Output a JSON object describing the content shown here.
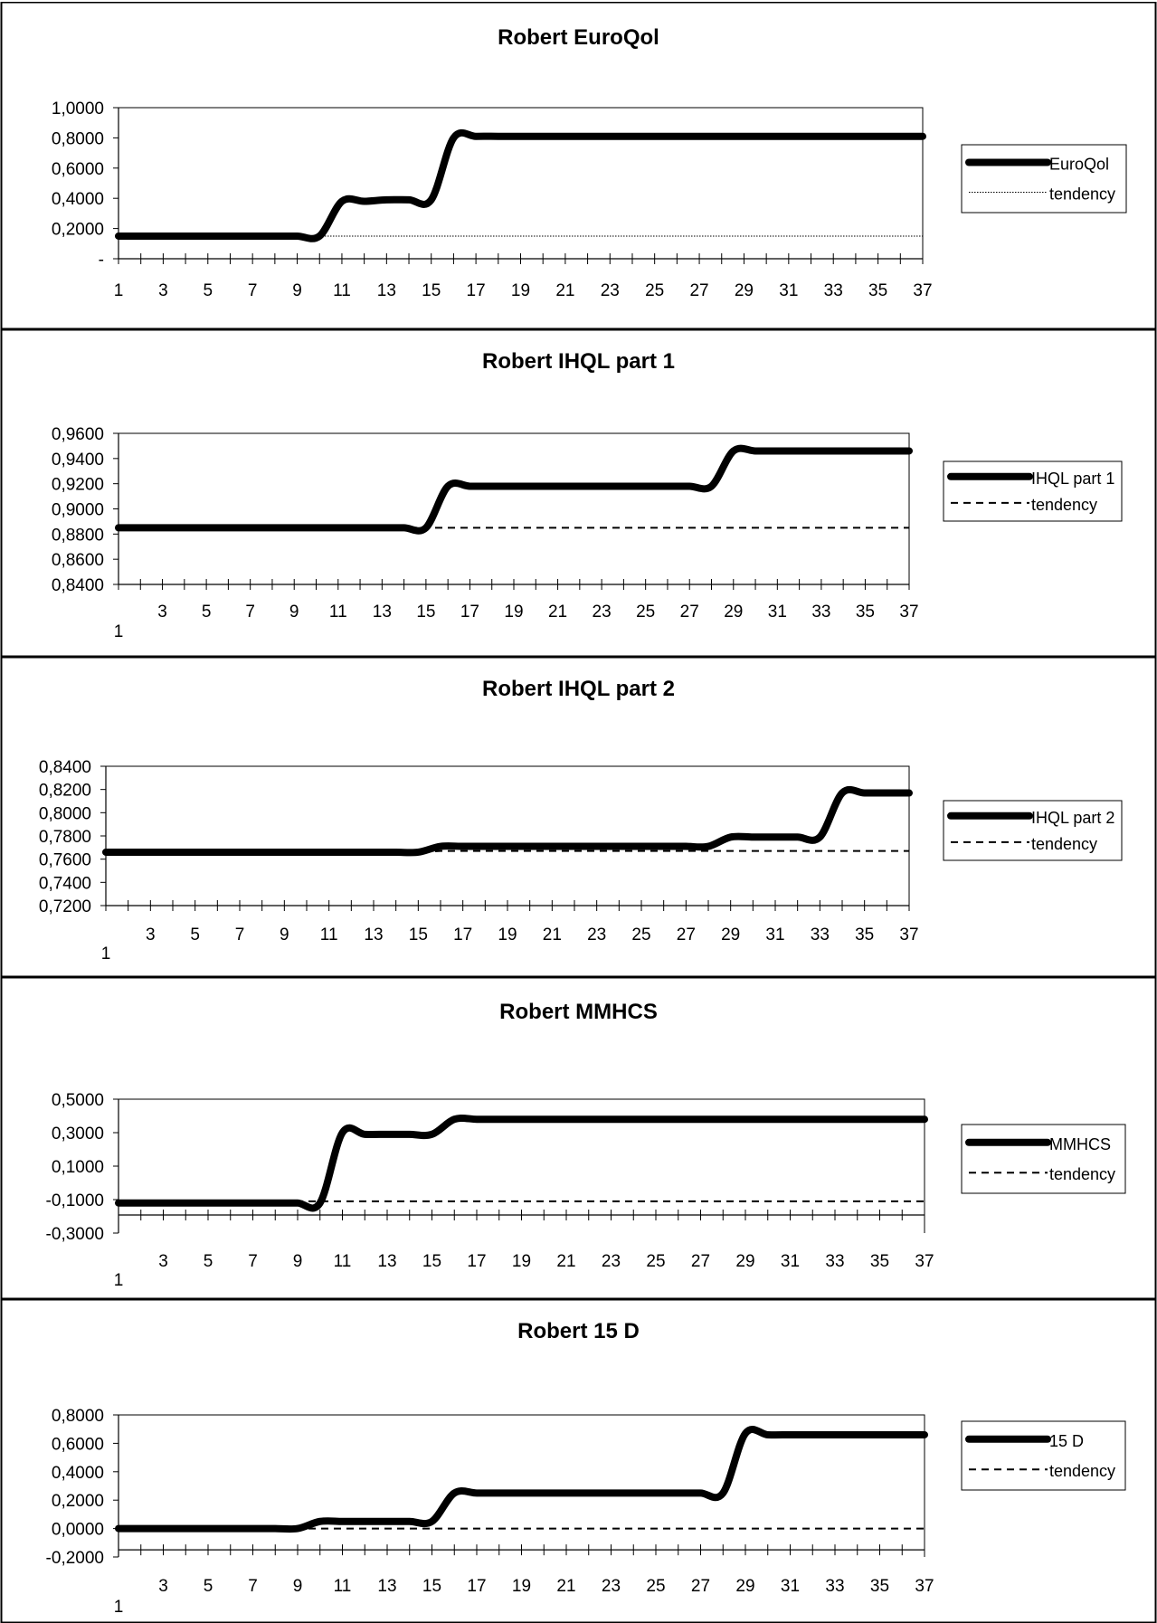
{
  "chart_data": [
    {
      "type": "line",
      "title": "Robert EuroQol",
      "x": [
        1,
        2,
        3,
        4,
        5,
        6,
        7,
        8,
        9,
        10,
        11,
        12,
        13,
        14,
        15,
        16,
        17,
        18,
        19,
        20,
        21,
        22,
        23,
        24,
        25,
        26,
        27,
        28,
        29,
        30,
        31,
        32,
        33,
        34,
        35,
        36,
        37
      ],
      "xticklabels": [
        "1",
        "3",
        "5",
        "7",
        "9",
        "11",
        "13",
        "15",
        "17",
        "19",
        "21",
        "23",
        "25",
        "27",
        "29",
        "31",
        "33",
        "35",
        "37"
      ],
      "ylim": [
        0,
        1
      ],
      "yticklabels": [
        "-",
        "0,2000",
        "0,4000",
        "0,6000",
        "0,8000",
        "1,0000"
      ],
      "grid": false,
      "legend_position": "right",
      "series": [
        {
          "name": "EuroQol",
          "style": "thick-solid",
          "values": [
            0.15,
            0.15,
            0.15,
            0.15,
            0.15,
            0.15,
            0.15,
            0.15,
            0.15,
            0.15,
            0.38,
            0.38,
            0.39,
            0.39,
            0.39,
            0.8,
            0.81,
            0.81,
            0.81,
            0.81,
            0.81,
            0.81,
            0.81,
            0.81,
            0.81,
            0.81,
            0.81,
            0.81,
            0.81,
            0.81,
            0.81,
            0.81,
            0.81,
            0.81,
            0.81,
            0.81,
            0.81
          ]
        },
        {
          "name": "tendency",
          "style": "thin-dotted",
          "values": [
            0.15,
            0.15,
            0.15,
            0.15,
            0.15,
            0.15,
            0.15,
            0.15,
            0.15,
            0.15,
            0.15,
            0.15,
            0.15,
            0.15,
            0.15,
            0.15,
            0.15,
            0.15,
            0.15,
            0.15,
            0.15,
            0.15,
            0.15,
            0.15,
            0.15,
            0.15,
            0.15,
            0.15,
            0.15,
            0.15,
            0.15,
            0.15,
            0.15,
            0.15,
            0.15,
            0.15,
            0.15
          ]
        }
      ]
    },
    {
      "type": "line",
      "title": "Robert IHQL part 1",
      "x": [
        1,
        2,
        3,
        4,
        5,
        6,
        7,
        8,
        9,
        10,
        11,
        12,
        13,
        14,
        15,
        16,
        17,
        18,
        19,
        20,
        21,
        22,
        23,
        24,
        25,
        26,
        27,
        28,
        29,
        30,
        31,
        32,
        33,
        34,
        35,
        36,
        37
      ],
      "xticklabels": [
        "3",
        "5",
        "7",
        "9",
        "11",
        "13",
        "15",
        "17",
        "19",
        "21",
        "23",
        "25",
        "27",
        "29",
        "31",
        "33",
        "35",
        "37"
      ],
      "xlabel_first": "1",
      "ylim": [
        0.84,
        0.96
      ],
      "yticklabels": [
        "0,8400",
        "0,8600",
        "0,8800",
        "0,9000",
        "0,9200",
        "0,9400",
        "0,9600"
      ],
      "grid": false,
      "legend_position": "right",
      "series": [
        {
          "name": "IHQL part 1",
          "style": "thick-solid",
          "values": [
            0.885,
            0.885,
            0.885,
            0.885,
            0.885,
            0.885,
            0.885,
            0.885,
            0.885,
            0.885,
            0.885,
            0.885,
            0.885,
            0.885,
            0.885,
            0.918,
            0.918,
            0.918,
            0.918,
            0.918,
            0.918,
            0.918,
            0.918,
            0.918,
            0.918,
            0.918,
            0.918,
            0.918,
            0.946,
            0.946,
            0.946,
            0.946,
            0.946,
            0.946,
            0.946,
            0.946,
            0.946
          ]
        },
        {
          "name": "tendency",
          "style": "dashed",
          "values": [
            0.885,
            0.885,
            0.885,
            0.885,
            0.885,
            0.885,
            0.885,
            0.885,
            0.885,
            0.885,
            0.885,
            0.885,
            0.885,
            0.885,
            0.885,
            0.885,
            0.885,
            0.885,
            0.885,
            0.885,
            0.885,
            0.885,
            0.885,
            0.885,
            0.885,
            0.885,
            0.885,
            0.885,
            0.885,
            0.885,
            0.885,
            0.885,
            0.885,
            0.885,
            0.885,
            0.885,
            0.885
          ]
        }
      ]
    },
    {
      "type": "line",
      "title": "Robert IHQL part 2",
      "x": [
        1,
        2,
        3,
        4,
        5,
        6,
        7,
        8,
        9,
        10,
        11,
        12,
        13,
        14,
        15,
        16,
        17,
        18,
        19,
        20,
        21,
        22,
        23,
        24,
        25,
        26,
        27,
        28,
        29,
        30,
        31,
        32,
        33,
        34,
        35,
        36,
        37
      ],
      "xticklabels": [
        "3",
        "5",
        "7",
        "9",
        "11",
        "13",
        "15",
        "17",
        "19",
        "21",
        "23",
        "25",
        "27",
        "29",
        "31",
        "33",
        "35",
        "37"
      ],
      "xlabel_first": "1",
      "ylim": [
        0.72,
        0.84
      ],
      "yticklabels": [
        "0,7200",
        "0,7400",
        "0,7600",
        "0,7800",
        "0,8000",
        "0,8200",
        "0,8400"
      ],
      "grid": false,
      "legend_position": "right",
      "series": [
        {
          "name": "IHQL part 2",
          "style": "thick-solid",
          "values": [
            0.766,
            0.766,
            0.766,
            0.766,
            0.766,
            0.766,
            0.766,
            0.766,
            0.766,
            0.766,
            0.766,
            0.766,
            0.766,
            0.766,
            0.766,
            0.771,
            0.771,
            0.771,
            0.771,
            0.771,
            0.771,
            0.771,
            0.771,
            0.771,
            0.771,
            0.771,
            0.771,
            0.771,
            0.779,
            0.779,
            0.779,
            0.779,
            0.779,
            0.817,
            0.817,
            0.817,
            0.817
          ]
        },
        {
          "name": "tendency",
          "style": "dashed",
          "values": [
            0.766,
            0.766,
            0.766,
            0.766,
            0.766,
            0.766,
            0.766,
            0.766,
            0.766,
            0.766,
            0.766,
            0.766,
            0.766,
            0.766,
            0.766,
            0.767,
            0.767,
            0.767,
            0.767,
            0.767,
            0.767,
            0.767,
            0.767,
            0.767,
            0.767,
            0.767,
            0.767,
            0.767,
            0.767,
            0.767,
            0.767,
            0.767,
            0.767,
            0.767,
            0.767,
            0.767,
            0.767
          ]
        }
      ]
    },
    {
      "type": "line",
      "title": "Robert MMHCS",
      "x": [
        1,
        2,
        3,
        4,
        5,
        6,
        7,
        8,
        9,
        10,
        11,
        12,
        13,
        14,
        15,
        16,
        17,
        18,
        19,
        20,
        21,
        22,
        23,
        24,
        25,
        26,
        27,
        28,
        29,
        30,
        31,
        32,
        33,
        34,
        35,
        36,
        37
      ],
      "xticklabels": [
        "3",
        "5",
        "7",
        "9",
        "11",
        "13",
        "15",
        "17",
        "19",
        "21",
        "23",
        "25",
        "27",
        "29",
        "31",
        "33",
        "35",
        "37"
      ],
      "xlabel_first": "1",
      "ylim": [
        -0.3,
        0.5
      ],
      "yticklabels": [
        "-0,3000",
        "-0,1000",
        "0,1000",
        "0,3000",
        "0,5000"
      ],
      "grid": false,
      "legend_position": "right",
      "series": [
        {
          "name": "MMHCS",
          "style": "thick-solid",
          "values": [
            -0.12,
            -0.12,
            -0.12,
            -0.12,
            -0.12,
            -0.12,
            -0.12,
            -0.12,
            -0.12,
            -0.12,
            0.3,
            0.29,
            0.29,
            0.29,
            0.29,
            0.38,
            0.38,
            0.38,
            0.38,
            0.38,
            0.38,
            0.38,
            0.38,
            0.38,
            0.38,
            0.38,
            0.38,
            0.38,
            0.38,
            0.38,
            0.38,
            0.38,
            0.38,
            0.38,
            0.38,
            0.38,
            0.38
          ]
        },
        {
          "name": "tendency",
          "style": "dashed",
          "values": [
            -0.11,
            -0.11,
            -0.11,
            -0.11,
            -0.11,
            -0.11,
            -0.11,
            -0.11,
            -0.11,
            -0.11,
            -0.11,
            -0.11,
            -0.11,
            -0.11,
            -0.11,
            -0.11,
            -0.11,
            -0.11,
            -0.11,
            -0.11,
            -0.11,
            -0.11,
            -0.11,
            -0.11,
            -0.11,
            -0.11,
            -0.11,
            -0.11,
            -0.11,
            -0.11,
            -0.11,
            -0.11,
            -0.11,
            -0.11,
            -0.11,
            -0.11,
            -0.11
          ]
        }
      ]
    },
    {
      "type": "line",
      "title": "Robert 15 D",
      "x": [
        1,
        2,
        3,
        4,
        5,
        6,
        7,
        8,
        9,
        10,
        11,
        12,
        13,
        14,
        15,
        16,
        17,
        18,
        19,
        20,
        21,
        22,
        23,
        24,
        25,
        26,
        27,
        28,
        29,
        30,
        31,
        32,
        33,
        34,
        35,
        36,
        37
      ],
      "xticklabels": [
        "3",
        "5",
        "7",
        "9",
        "11",
        "13",
        "15",
        "17",
        "19",
        "21",
        "23",
        "25",
        "27",
        "29",
        "31",
        "33",
        "35",
        "37"
      ],
      "xlabel_first": "1",
      "ylim": [
        -0.2,
        0.8
      ],
      "yticklabels": [
        "-0,2000",
        "0,0000",
        "0,2000",
        "0,4000",
        "0,6000",
        "0,8000"
      ],
      "grid": false,
      "legend_position": "right",
      "series": [
        {
          "name": "15 D",
          "style": "thick-solid",
          "values": [
            0,
            0,
            0,
            0,
            0,
            0,
            0,
            0,
            0,
            0.05,
            0.05,
            0.05,
            0.05,
            0.05,
            0.05,
            0.25,
            0.25,
            0.25,
            0.25,
            0.25,
            0.25,
            0.25,
            0.25,
            0.25,
            0.25,
            0.25,
            0.25,
            0.25,
            0.67,
            0.66,
            0.66,
            0.66,
            0.66,
            0.66,
            0.66,
            0.66,
            0.66
          ]
        },
        {
          "name": "tendency",
          "style": "dashed",
          "values": [
            0,
            0,
            0,
            0,
            0,
            0,
            0,
            0,
            0,
            0,
            0,
            0,
            0,
            0,
            0,
            0,
            0,
            0,
            0,
            0,
            0,
            0,
            0,
            0,
            0,
            0,
            0,
            0,
            0,
            0,
            0,
            0,
            0,
            0,
            0,
            0,
            0
          ]
        }
      ]
    }
  ]
}
